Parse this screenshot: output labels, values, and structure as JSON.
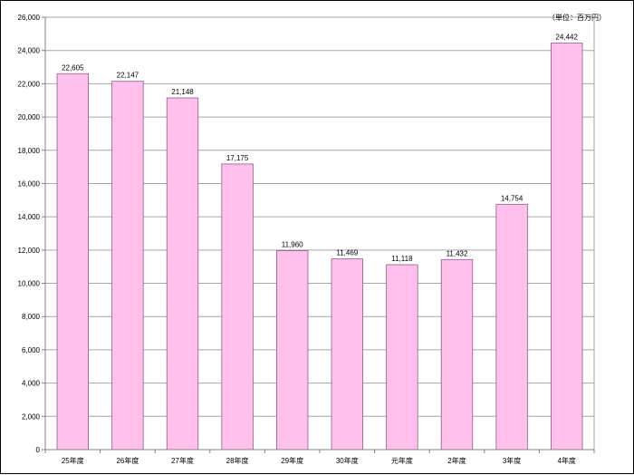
{
  "chart_data": {
    "type": "bar",
    "title": "",
    "unit_label": "（単位：百万円）",
    "xlabel": "",
    "ylabel": "",
    "categories": [
      "25年度",
      "26年度",
      "27年度",
      "28年度",
      "29年度",
      "30年度",
      "元年度",
      "2年度",
      "3年度",
      "4年度"
    ],
    "values": [
      22605,
      22147,
      21148,
      17175,
      11960,
      11469,
      11118,
      11432,
      14754,
      24442
    ],
    "value_labels": [
      "22,605",
      "22,147",
      "21,148",
      "17,175",
      "11,960",
      "11,469",
      "11,118",
      "11,432",
      "14,754",
      "24,442"
    ],
    "ylim": [
      0,
      26000
    ],
    "ytick_step": 2000,
    "ytick_labels": [
      "0",
      "2,000",
      "4,000",
      "6,000",
      "8,000",
      "10,000",
      "12,000",
      "14,000",
      "16,000",
      "18,000",
      "20,000",
      "22,000",
      "24,000",
      "26,000"
    ],
    "grid": true,
    "legend": "none",
    "colors": {
      "bar_fill": "#FFC0EC",
      "bar_stroke": "#8C5C8C",
      "grid": "#A6A6A6",
      "axis": "#808080"
    }
  }
}
